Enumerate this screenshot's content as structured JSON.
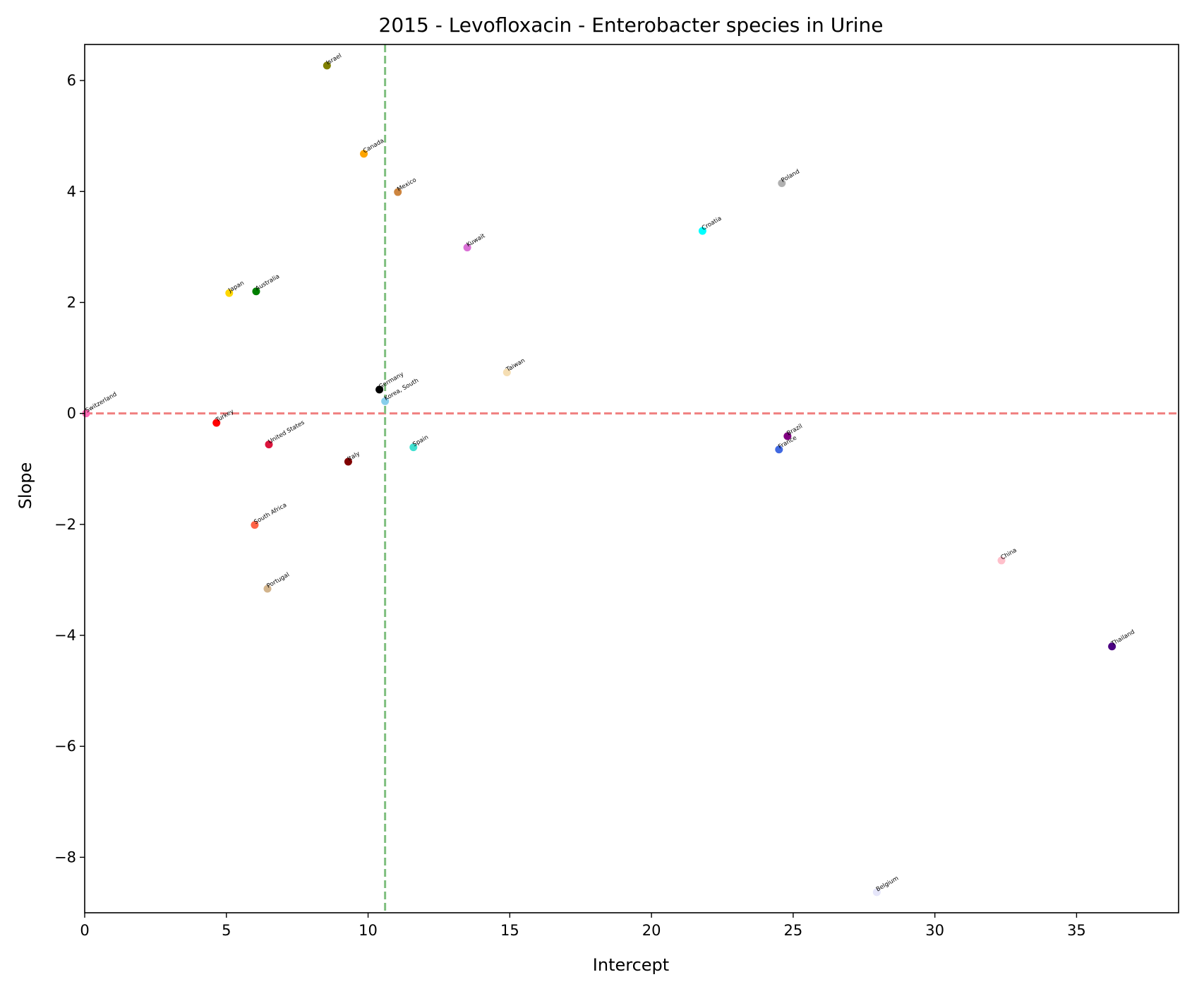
{
  "chart_data": {
    "type": "scatter",
    "title": "2015 - Levofloxacin - Enterobacter species in Urine",
    "xlabel": "Intercept",
    "ylabel": "Slope",
    "xlim": [
      0,
      38.6
    ],
    "ylim": [
      -9.0,
      6.65
    ],
    "xticks": [
      0,
      5,
      10,
      15,
      20,
      25,
      30,
      35
    ],
    "yticks": [
      -8,
      -6,
      -4,
      -2,
      0,
      2,
      4,
      6
    ],
    "grid": false,
    "reference_lines": [
      {
        "orientation": "horizontal",
        "value": 0,
        "color": "#f08080",
        "style": "dashed"
      },
      {
        "orientation": "vertical",
        "value": 10.6,
        "color": "#7fbf7f",
        "style": "dashed"
      }
    ],
    "points": [
      {
        "label": "Israel",
        "x": 8.55,
        "y": 6.27,
        "color": "#808000"
      },
      {
        "label": "Canada",
        "x": 9.85,
        "y": 4.68,
        "color": "#ffa500"
      },
      {
        "label": "Mexico",
        "x": 11.05,
        "y": 3.99,
        "color": "#cd853f"
      },
      {
        "label": "Poland",
        "x": 24.6,
        "y": 4.15,
        "color": "#b0b0b0"
      },
      {
        "label": "Croatia",
        "x": 21.8,
        "y": 3.29,
        "color": "#00ffff"
      },
      {
        "label": "Kuwait",
        "x": 13.5,
        "y": 2.99,
        "color": "#da70d6"
      },
      {
        "label": "Japan",
        "x": 5.1,
        "y": 2.17,
        "color": "#ffd700"
      },
      {
        "label": "Australia",
        "x": 6.05,
        "y": 2.2,
        "color": "#008000"
      },
      {
        "label": "Taiwan",
        "x": 14.9,
        "y": 0.74,
        "color": "#f5deb3"
      },
      {
        "label": "Germany",
        "x": 10.4,
        "y": 0.43,
        "color": "#000000"
      },
      {
        "label": "Korea, South",
        "x": 10.6,
        "y": 0.22,
        "color": "#87ceeb"
      },
      {
        "label": "Switzerland",
        "x": 0.05,
        "y": 0.0,
        "color": "#ff69b4"
      },
      {
        "label": "Turkey",
        "x": 4.65,
        "y": -0.17,
        "color": "#ff0000"
      },
      {
        "label": "United States",
        "x": 6.5,
        "y": -0.56,
        "color": "#dc143c"
      },
      {
        "label": "Italy",
        "x": 9.3,
        "y": -0.87,
        "color": "#800000"
      },
      {
        "label": "Spain",
        "x": 11.6,
        "y": -0.61,
        "color": "#40e0d0"
      },
      {
        "label": "Brazil",
        "x": 24.8,
        "y": -0.41,
        "color": "#800080"
      },
      {
        "label": "France",
        "x": 24.5,
        "y": -0.65,
        "color": "#4169e1"
      },
      {
        "label": "South Africa",
        "x": 6.0,
        "y": -2.01,
        "color": "#ff6347"
      },
      {
        "label": "Portugal",
        "x": 6.45,
        "y": -3.16,
        "color": "#d2b48c"
      },
      {
        "label": "China",
        "x": 32.35,
        "y": -2.65,
        "color": "#ffc0cb"
      },
      {
        "label": "Thailand",
        "x": 36.25,
        "y": -4.2,
        "color": "#4b0082"
      },
      {
        "label": "Belgium",
        "x": 27.95,
        "y": -8.63,
        "color": "#e6e6fa"
      }
    ]
  }
}
